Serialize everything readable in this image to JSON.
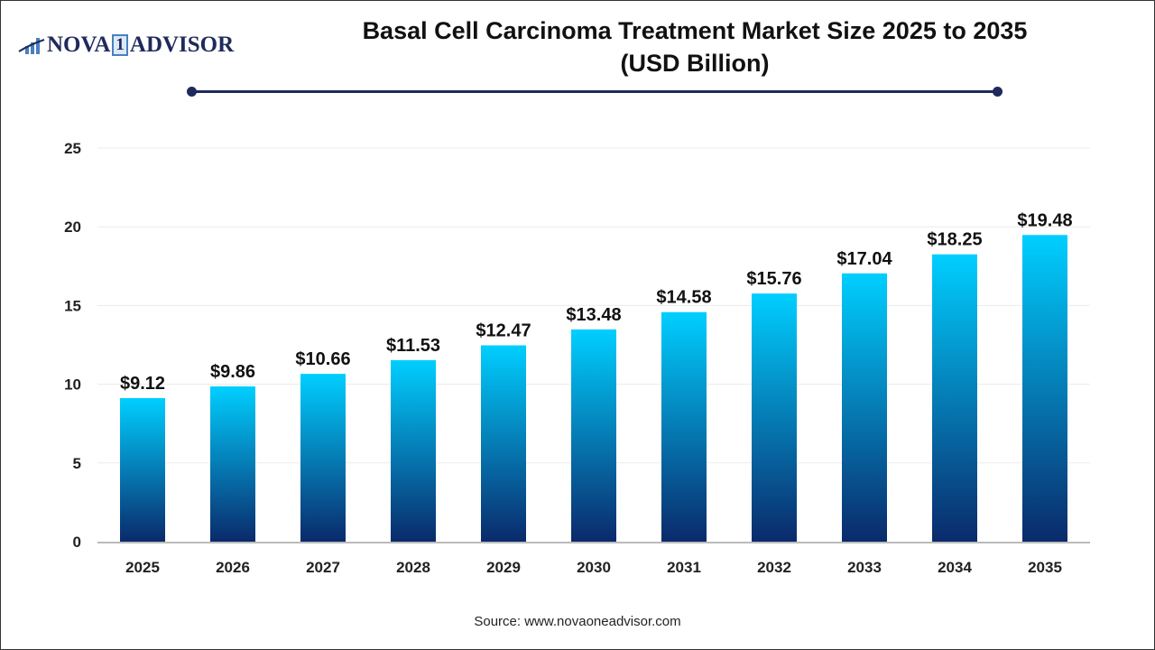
{
  "logo": {
    "text_left": "NOVA",
    "text_mid": "1",
    "text_right": "ADVISOR"
  },
  "colors": {
    "bar_top": "#00cfff",
    "bar_bottom": "#0a2a6b",
    "title_rule": "#1f2a5c"
  },
  "source": "Source: www.novaoneadvisor.com",
  "chart_data": {
    "type": "bar",
    "title": "Basal Cell Carcinoma Treatment Market Size 2025 to 2035",
    "subtitle": "(USD Billion)",
    "xlabel": "",
    "ylabel": "",
    "ylim": [
      0,
      25
    ],
    "yticks": [
      0,
      5,
      10,
      15,
      20,
      25
    ],
    "grid": true,
    "categories": [
      "2025",
      "2026",
      "2027",
      "2028",
      "2029",
      "2030",
      "2031",
      "2032",
      "2033",
      "2034",
      "2035"
    ],
    "values": [
      9.12,
      9.86,
      10.66,
      11.53,
      12.47,
      13.48,
      14.58,
      15.76,
      17.04,
      18.25,
      19.48
    ],
    "data_labels": [
      "$9.12",
      "$9.86",
      "$10.66",
      "$11.53",
      "$12.47",
      "$13.48",
      "$14.58",
      "$15.76",
      "$17.04",
      "$18.25",
      "$19.48"
    ]
  }
}
